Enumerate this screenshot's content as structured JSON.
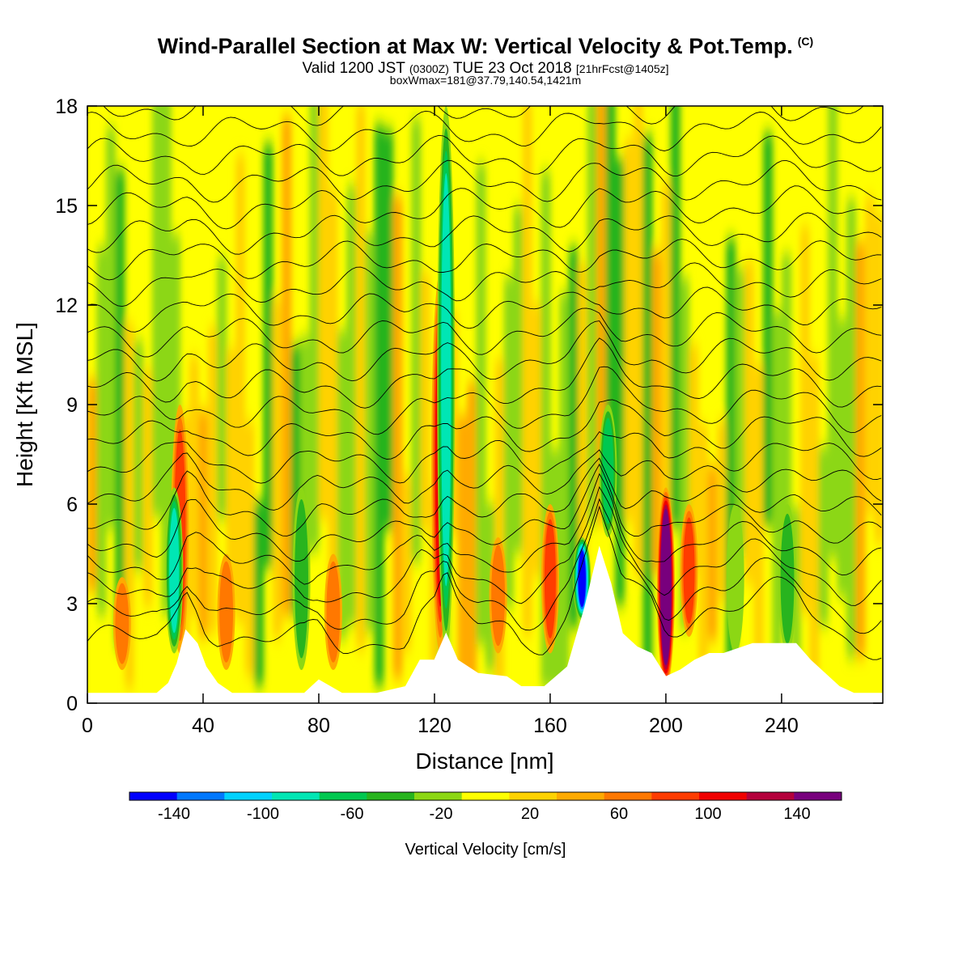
{
  "title": {
    "main": "Wind-Parallel Section at Max W: Vertical Velocity & Pot.Temp.",
    "copyright": "(C)",
    "valid_prefix": "Valid 1200 JST",
    "valid_utc": "(0300Z)",
    "valid_suffix": "TUE 23 Oct 2018",
    "forecast": "[21hrFcst@1405z]",
    "box": "boxWmax=181@37.79,140.54,1421m"
  },
  "chart_data": {
    "type": "heatmap",
    "xlabel": "Distance [nm]",
    "ylabel": "Height [Kft MSL]",
    "xlim": [
      0,
      275
    ],
    "ylim": [
      0,
      18
    ],
    "xticks": [
      0,
      40,
      80,
      120,
      160,
      200,
      240
    ],
    "yticks": [
      0,
      3,
      6,
      9,
      12,
      15,
      18
    ],
    "colorbar": {
      "label": "Vertical Velocity [cm/s]",
      "levels": [
        -160,
        -140,
        -120,
        -100,
        -80,
        -60,
        -40,
        -20,
        0,
        20,
        40,
        60,
        80,
        100,
        120,
        140,
        160
      ],
      "tick_labels": [
        "-140",
        "-100",
        "-60",
        "-20",
        "20",
        "60",
        "100",
        "140"
      ],
      "colors": [
        "#0000ff",
        "#0078ff",
        "#00d2ff",
        "#00e6b4",
        "#00c850",
        "#28b41e",
        "#8cd714",
        "#ffff00",
        "#ffd200",
        "#ffaa00",
        "#ff7800",
        "#ff3c00",
        "#f00000",
        "#b4003c",
        "#78007d"
      ]
    },
    "background_color": "#ffff00",
    "terrain_color": "#ffffff",
    "updraft_cores": [
      {
        "x": 12,
        "z_bottom": 1.0,
        "z_top": 3.8,
        "w": 50
      },
      {
        "x": 32,
        "z_bottom": 1.5,
        "z_top": 9.0,
        "w": 70
      },
      {
        "x": 48,
        "z_bottom": 1.0,
        "z_top": 4.5,
        "w": 40
      },
      {
        "x": 85,
        "z_bottom": 1.0,
        "z_top": 4.5,
        "w": 40
      },
      {
        "x": 122,
        "z_bottom": 1.5,
        "z_top": 13.0,
        "w": 90
      },
      {
        "x": 142,
        "z_bottom": 1.5,
        "z_top": 5.0,
        "w": 50
      },
      {
        "x": 160,
        "z_bottom": 1.5,
        "z_top": 6.0,
        "w": 60
      },
      {
        "x": 200,
        "z_bottom": 0.5,
        "z_top": 6.5,
        "w": 181
      },
      {
        "x": 208,
        "z_bottom": 2.0,
        "z_top": 6.0,
        "w": 60
      }
    ],
    "downdraft_cores": [
      {
        "x": 30,
        "z_bottom": 1.5,
        "z_top": 6.5,
        "w": -80
      },
      {
        "x": 74,
        "z_bottom": 1.0,
        "z_top": 6.5,
        "w": -40
      },
      {
        "x": 124,
        "z_bottom": 1.5,
        "z_top": 18.0,
        "w": -80
      },
      {
        "x": 171,
        "z_bottom": 2.5,
        "z_top": 5.0,
        "w": -140
      },
      {
        "x": 180,
        "z_bottom": 5.0,
        "z_top": 9.0,
        "w": -60
      },
      {
        "x": 224,
        "z_bottom": 1.5,
        "z_top": 6.0,
        "w": -30
      },
      {
        "x": 242,
        "z_bottom": 1.5,
        "z_top": 6.0,
        "w": -40
      }
    ],
    "terrain_profile": [
      [
        0,
        0.3
      ],
      [
        12,
        0.3
      ],
      [
        24,
        0.3
      ],
      [
        28,
        0.6
      ],
      [
        31,
        1.2
      ],
      [
        34,
        2.2
      ],
      [
        38,
        1.8
      ],
      [
        41,
        1.1
      ],
      [
        45,
        0.6
      ],
      [
        50,
        0.3
      ],
      [
        60,
        0.3
      ],
      [
        75,
        0.3
      ],
      [
        80,
        0.7
      ],
      [
        88,
        0.3
      ],
      [
        100,
        0.3
      ],
      [
        110,
        0.5
      ],
      [
        115,
        1.3
      ],
      [
        120,
        1.3
      ],
      [
        124,
        2.1
      ],
      [
        128,
        1.3
      ],
      [
        135,
        0.9
      ],
      [
        145,
        0.8
      ],
      [
        150,
        0.5
      ],
      [
        158,
        0.5
      ],
      [
        166,
        1.1
      ],
      [
        172,
        2.9
      ],
      [
        177,
        4.7
      ],
      [
        181,
        3.6
      ],
      [
        185,
        2.1
      ],
      [
        190,
        1.7
      ],
      [
        195,
        1.5
      ],
      [
        200,
        0.8
      ],
      [
        205,
        1.0
      ],
      [
        210,
        1.3
      ],
      [
        215,
        1.5
      ],
      [
        220,
        1.5
      ],
      [
        230,
        1.8
      ],
      [
        240,
        1.8
      ],
      [
        245,
        1.8
      ],
      [
        250,
        1.3
      ],
      [
        255,
        0.9
      ],
      [
        260,
        0.5
      ],
      [
        265,
        0.3
      ],
      [
        275,
        0.3
      ]
    ],
    "theta_contours": {
      "count": 22,
      "line_color": "#000000"
    }
  }
}
